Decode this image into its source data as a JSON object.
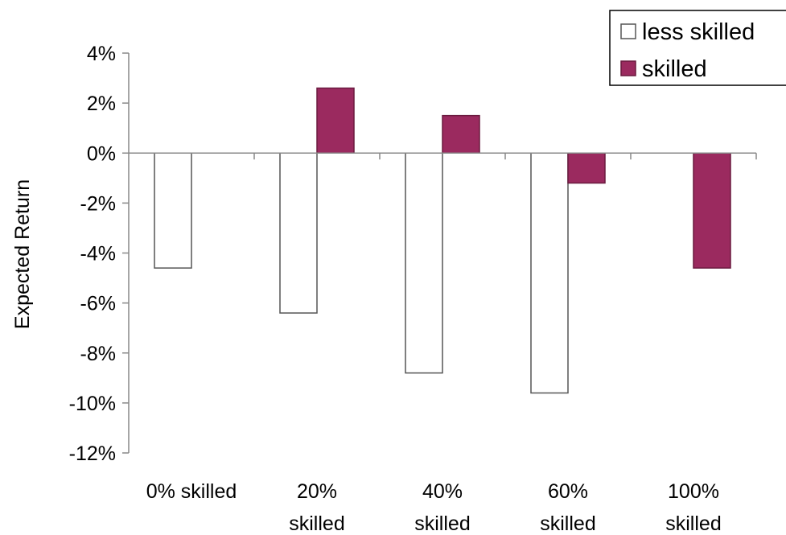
{
  "chart_data": {
    "type": "bar",
    "title": "",
    "xlabel": "",
    "ylabel": "Expected Return",
    "ylim": [
      -12,
      4
    ],
    "y_ticks": [
      4,
      2,
      0,
      -2,
      -4,
      -6,
      -8,
      -10,
      -12
    ],
    "y_tick_labels": [
      "4%",
      "2%",
      "0%",
      "-2%",
      "-4%",
      "-6%",
      "-8%",
      "-10%",
      "-12%"
    ],
    "categories": [
      [
        "0% skilled"
      ],
      [
        "20%",
        "skilled"
      ],
      [
        "40%",
        "skilled"
      ],
      [
        "60%",
        "skilled"
      ],
      [
        "100%",
        "skilled"
      ]
    ],
    "series": [
      {
        "name": "less skilled",
        "values": [
          -4.6,
          -6.4,
          -8.8,
          -9.6,
          null
        ],
        "color": "#ffffff",
        "stroke": "#555555"
      },
      {
        "name": "skilled",
        "values": [
          null,
          2.6,
          1.5,
          -1.2,
          -4.6
        ],
        "color": "#9b2a5f",
        "stroke": "#6a1a3f"
      }
    ],
    "legend": "top-right",
    "grid": false
  }
}
